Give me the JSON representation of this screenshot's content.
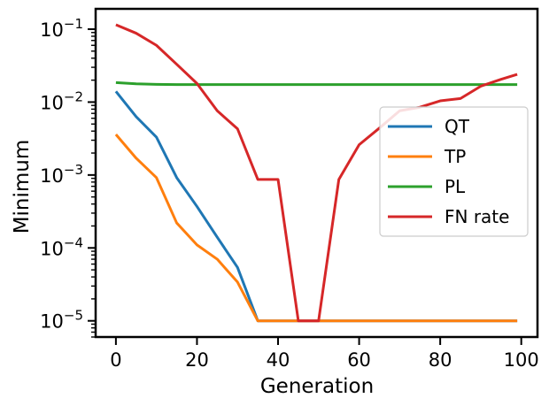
{
  "chart_data": {
    "type": "line",
    "title": "",
    "xlabel": "Generation",
    "ylabel": "Minimum",
    "xlim": [
      -5,
      104
    ],
    "ylim": [
      6e-06,
      0.19
    ],
    "yscale": "log",
    "x_ticks": [
      0,
      20,
      40,
      60,
      80,
      100
    ],
    "x_tick_labels": [
      "0",
      "20",
      "40",
      "60",
      "80",
      "100"
    ],
    "y_ticks": [
      1e-05,
      0.0001,
      0.001,
      0.01,
      0.1
    ],
    "y_tick_labels": [
      {
        "base": "10",
        "exp": "−5"
      },
      {
        "base": "10",
        "exp": "−4"
      },
      {
        "base": "10",
        "exp": "−3"
      },
      {
        "base": "10",
        "exp": "−2"
      },
      {
        "base": "10",
        "exp": "−1"
      }
    ],
    "grid": false,
    "legend_position": "center-right",
    "series": [
      {
        "name": "QT",
        "color": "#1f77b4",
        "points": [
          [
            0,
            0.014
          ],
          [
            5,
            0.0063
          ],
          [
            10,
            0.0033
          ],
          [
            15,
            0.00092
          ],
          [
            20,
            0.00037
          ],
          [
            25,
            0.00014
          ],
          [
            30,
            5.4e-05
          ],
          [
            35,
            1e-05
          ],
          [
            40,
            1e-05
          ],
          [
            45,
            1e-05
          ],
          [
            50,
            1e-05
          ],
          [
            55,
            1e-05
          ],
          [
            60,
            1e-05
          ],
          [
            65,
            1e-05
          ],
          [
            70,
            1e-05
          ],
          [
            75,
            1e-05
          ],
          [
            80,
            1e-05
          ],
          [
            85,
            1e-05
          ],
          [
            90,
            1e-05
          ],
          [
            95,
            1e-05
          ],
          [
            99,
            1e-05
          ]
        ]
      },
      {
        "name": "TP",
        "color": "#ff7f0e",
        "points": [
          [
            0,
            0.0036
          ],
          [
            5,
            0.0017
          ],
          [
            10,
            0.00092
          ],
          [
            15,
            0.00022
          ],
          [
            20,
            0.00011
          ],
          [
            25,
            7e-05
          ],
          [
            30,
            3.4e-05
          ],
          [
            35,
            1e-05
          ],
          [
            40,
            1e-05
          ],
          [
            45,
            1e-05
          ],
          [
            50,
            1e-05
          ],
          [
            55,
            1e-05
          ],
          [
            60,
            1e-05
          ],
          [
            65,
            1e-05
          ],
          [
            70,
            1e-05
          ],
          [
            75,
            1e-05
          ],
          [
            80,
            1e-05
          ],
          [
            85,
            1e-05
          ],
          [
            90,
            1e-05
          ],
          [
            95,
            1e-05
          ],
          [
            99,
            1e-05
          ]
        ]
      },
      {
        "name": "PL",
        "color": "#2ca02c",
        "points": [
          [
            0,
            0.0185
          ],
          [
            5,
            0.0178
          ],
          [
            10,
            0.0175
          ],
          [
            15,
            0.0174
          ],
          [
            20,
            0.0174
          ],
          [
            30,
            0.0174
          ],
          [
            40,
            0.0174
          ],
          [
            50,
            0.0174
          ],
          [
            60,
            0.0174
          ],
          [
            70,
            0.0174
          ],
          [
            80,
            0.0174
          ],
          [
            90,
            0.0174
          ],
          [
            99,
            0.0174
          ]
        ]
      },
      {
        "name": "FN rate",
        "color": "#d62728",
        "points": [
          [
            0,
            0.115
          ],
          [
            5,
            0.088
          ],
          [
            10,
            0.06
          ],
          [
            15,
            0.033
          ],
          [
            20,
            0.018
          ],
          [
            25,
            0.0076
          ],
          [
            30,
            0.0043
          ],
          [
            35,
            0.00087
          ],
          [
            40,
            0.00087
          ],
          [
            45,
            1e-05
          ],
          [
            50,
            1e-05
          ],
          [
            55,
            0.00087
          ],
          [
            60,
            0.0026
          ],
          [
            65,
            0.0044
          ],
          [
            70,
            0.0076
          ],
          [
            75,
            0.0085
          ],
          [
            80,
            0.0104
          ],
          [
            85,
            0.0112
          ],
          [
            90,
            0.0165
          ],
          [
            95,
            0.0205
          ],
          [
            99,
            0.024
          ]
        ]
      }
    ]
  }
}
